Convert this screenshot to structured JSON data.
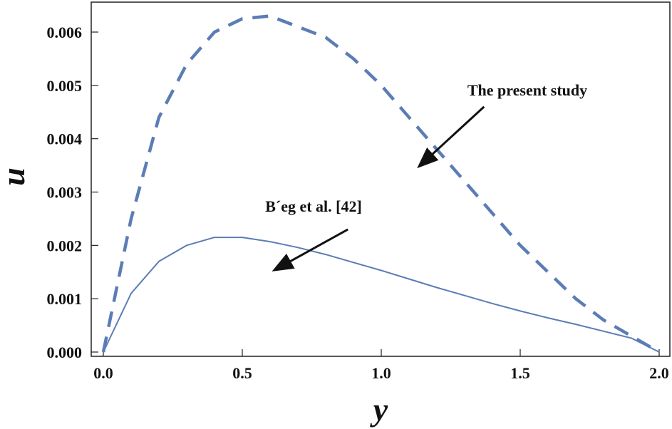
{
  "chart_data": {
    "type": "line",
    "title": "",
    "xlabel": "y",
    "ylabel": "u",
    "xlim": [
      0,
      2
    ],
    "ylim": [
      0,
      0.0066
    ],
    "x_ticks": [
      "0.0",
      "0.5",
      "1.0",
      "1.5",
      "2.0"
    ],
    "x_tick_values": [
      0,
      0.5,
      1.0,
      1.5,
      2.0
    ],
    "y_ticks": [
      "0.000",
      "0.001",
      "0.002",
      "0.003",
      "0.004",
      "0.005",
      "0.006"
    ],
    "y_tick_values": [
      0,
      0.001,
      0.002,
      0.003,
      0.004,
      0.005,
      0.006
    ],
    "grid": false,
    "series": [
      {
        "name": "The present study",
        "style": "dashed",
        "color": "#5b7db5",
        "x": [
          0,
          0.1,
          0.2,
          0.3,
          0.4,
          0.5,
          0.6,
          0.7,
          0.8,
          0.9,
          1.0,
          1.1,
          1.2,
          1.3,
          1.4,
          1.5,
          1.6,
          1.7,
          1.8,
          1.9,
          2.0
        ],
        "y": [
          0,
          0.0025,
          0.0044,
          0.0054,
          0.006,
          0.00625,
          0.0063,
          0.0061,
          0.0059,
          0.0055,
          0.005,
          0.0044,
          0.0038,
          0.0032,
          0.0026,
          0.002,
          0.0015,
          0.001,
          0.0006,
          0.0003,
          0
        ]
      },
      {
        "name": "B´eg et al. [42]",
        "style": "solid",
        "color": "#5b7db5",
        "x": [
          0,
          0.1,
          0.2,
          0.3,
          0.4,
          0.5,
          0.6,
          0.7,
          0.8,
          0.9,
          1.0,
          1.1,
          1.2,
          1.3,
          1.4,
          1.5,
          1.6,
          1.7,
          1.8,
          1.9,
          2.0
        ],
        "y": [
          0,
          0.0011,
          0.0017,
          0.002,
          0.00215,
          0.00215,
          0.00207,
          0.00196,
          0.00183,
          0.00168,
          0.00153,
          0.00137,
          0.00121,
          0.00106,
          0.00091,
          0.00077,
          0.00064,
          0.00052,
          0.00039,
          0.00026,
          0
        ]
      }
    ],
    "annotations": [
      {
        "text": "The present study",
        "arrow_from": [
          1.37,
          0.0046
        ],
        "arrow_to": [
          1.14,
          0.0035
        ]
      },
      {
        "text": "B´eg et al. [42]",
        "arrow_from": [
          0.88,
          0.0023
        ],
        "arrow_to": [
          0.62,
          0.00155
        ]
      }
    ]
  }
}
